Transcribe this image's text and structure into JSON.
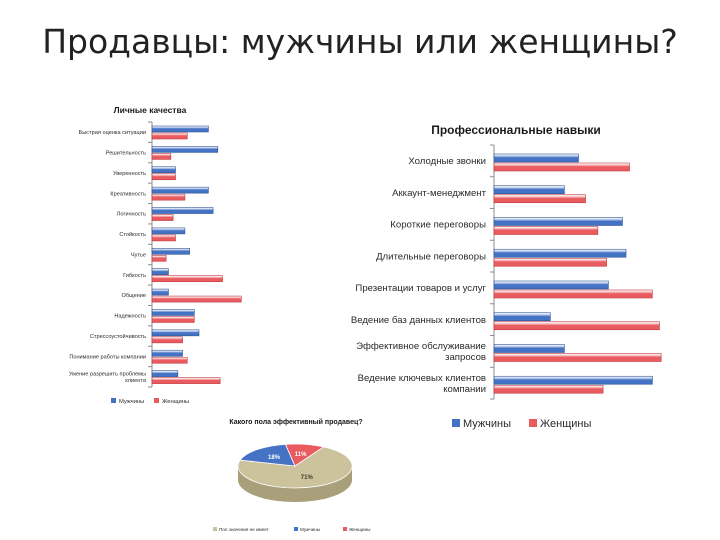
{
  "slide_title": "Продавцы: мужчины или женщины?",
  "colors": {
    "men": "#4472C4",
    "women": "#EA5B60",
    "other": "#CCC29C",
    "axis": "#8c8c8c"
  },
  "chart_data": [
    {
      "type": "bar",
      "orientation": "horizontal",
      "title": "Личные качества",
      "categories": [
        "Быстрая оценка ситуации",
        "Решительность",
        "Уверенность",
        "Креативность",
        "Логичность",
        "Стойкость",
        "Чутье",
        "Гибкость",
        "Общение",
        "Надежность",
        "Стрессоустойчивость",
        "Понимание работы компании",
        "Умение разрешить проблемы клиента"
      ],
      "series": [
        {
          "name": "Мужчины",
          "values": [
            24,
            28,
            10,
            24,
            26,
            14,
            16,
            7,
            7,
            18,
            20,
            13,
            11
          ]
        },
        {
          "name": "Женщины",
          "values": [
            15,
            8,
            10,
            14,
            9,
            10,
            6,
            30,
            38,
            18,
            13,
            15,
            29
          ]
        }
      ],
      "legend_position": "bottom"
    },
    {
      "type": "bar",
      "orientation": "horizontal",
      "title": "Профессиональные навыки",
      "categories": [
        "Холодные звонки",
        "Аккаунт-менеджмент",
        "Короткие переговоры",
        "Длительные переговоры",
        "Презентации товаров и услуг",
        "Ведение баз данных клиентов",
        "Эффективное обслуживание запросов",
        "Ведение ключевых клиентов компании"
      ],
      "series": [
        {
          "name": "Мужчины",
          "values": [
            48,
            40,
            73,
            75,
            65,
            32,
            40,
            90
          ]
        },
        {
          "name": "Женщины",
          "values": [
            77,
            52,
            59,
            64,
            90,
            94,
            95,
            62
          ]
        }
      ],
      "legend_position": "bottom"
    },
    {
      "type": "pie",
      "title": "Какого пола эффективный продавец?",
      "labels": [
        "Пол значения не имеет",
        "Мужчины",
        "Женщины"
      ],
      "values": [
        71,
        18,
        11
      ],
      "value_labels": [
        "71%",
        "18%",
        "11%"
      ],
      "legend_position": "bottom"
    }
  ]
}
